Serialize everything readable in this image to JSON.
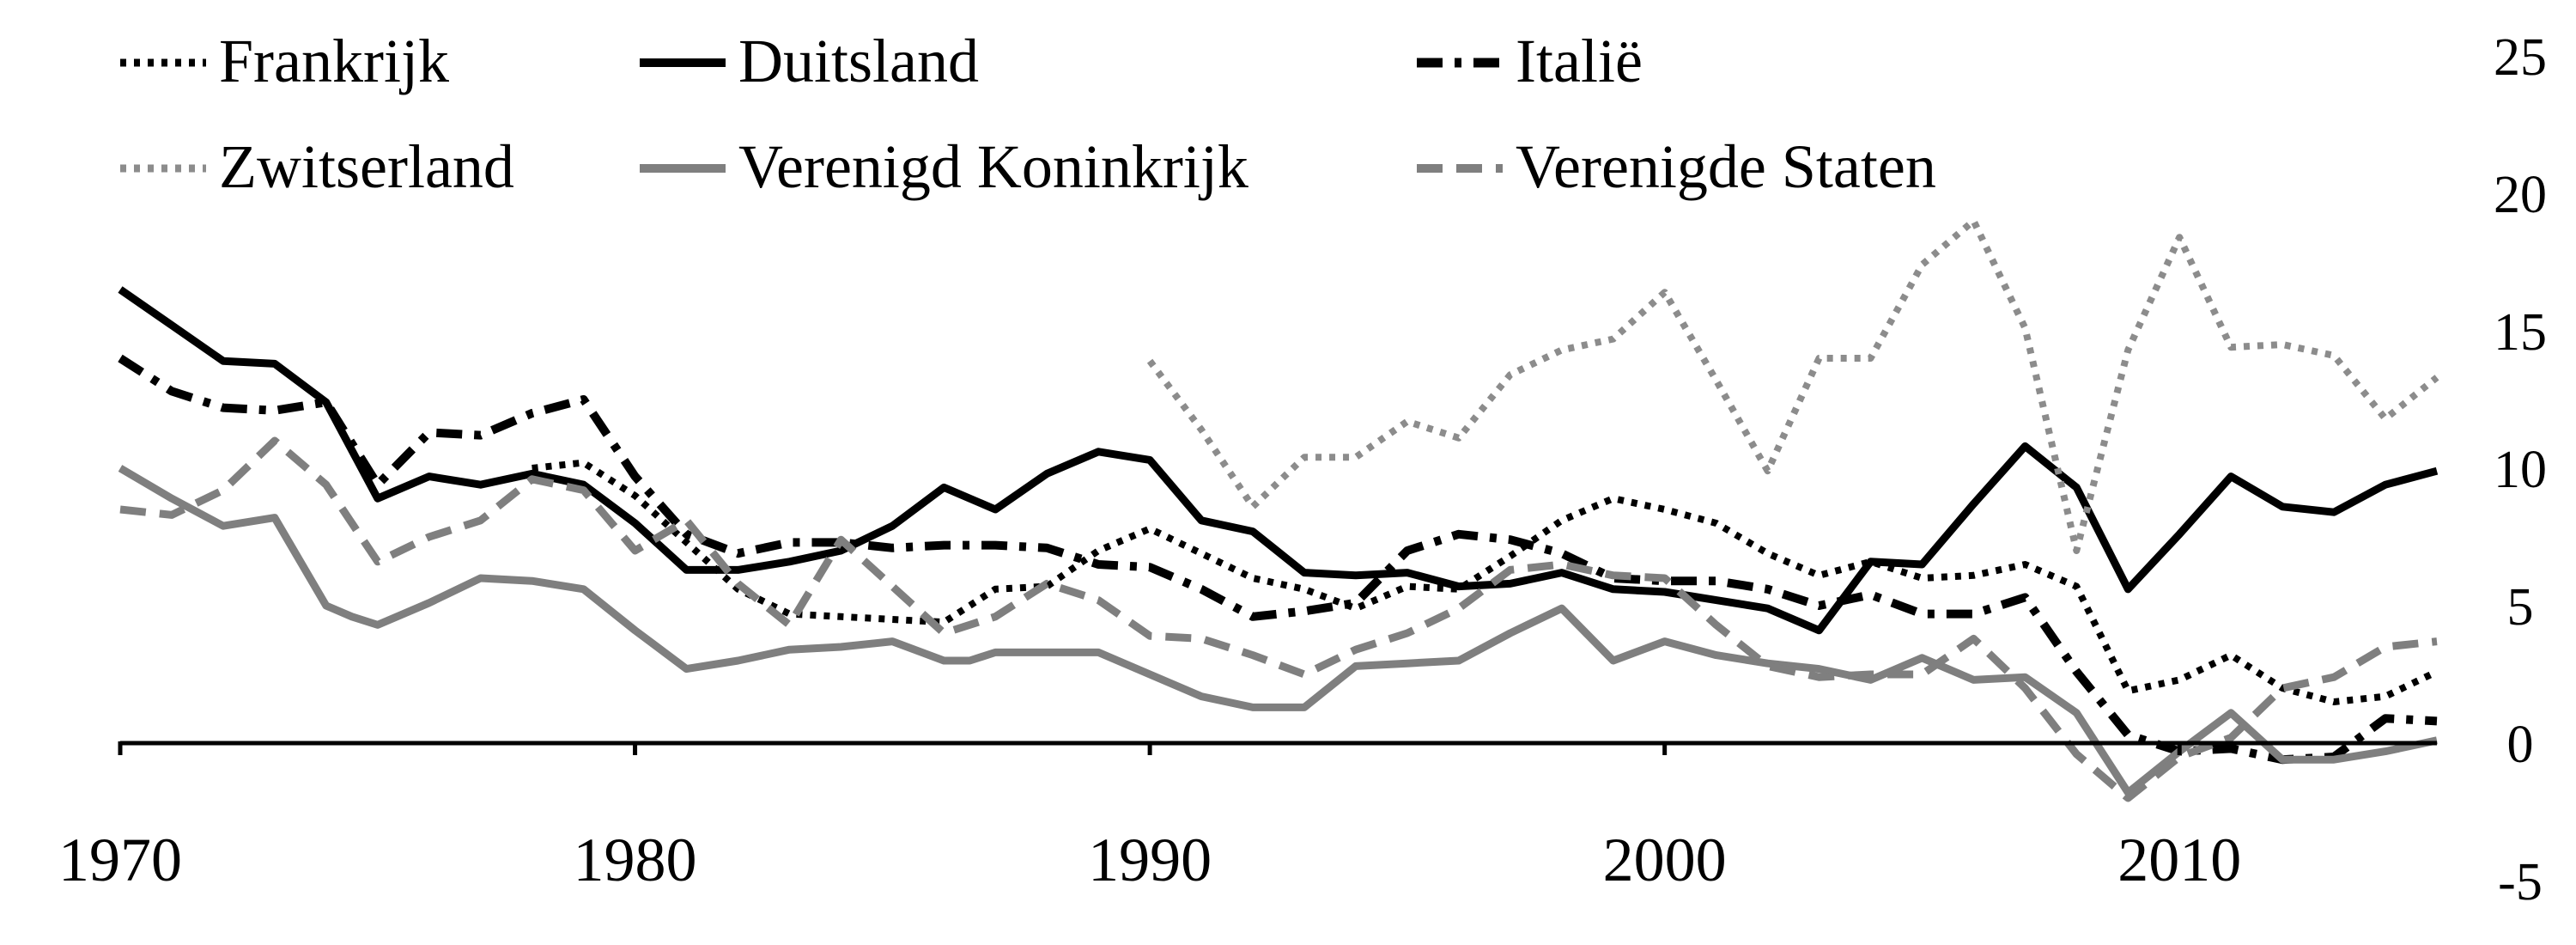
{
  "chart_data": {
    "type": "line",
    "title": "",
    "xlabel": "",
    "ylabel": "",
    "xlim": [
      1970,
      2015
    ],
    "ylim": [
      -5,
      25
    ],
    "y_axis_side": "right",
    "x_ticks": [
      1970,
      1980,
      1990,
      2000,
      2010
    ],
    "x_tick_labels": [
      "1970",
      "1980",
      "1990",
      "2000",
      "2010"
    ],
    "y_ticks": [
      25,
      20,
      15,
      10,
      5,
      0,
      -5
    ],
    "y_tick_labels": [
      "25",
      "20",
      "15",
      "10",
      "5",
      "0",
      "-5"
    ],
    "grid": false,
    "legend_position": "top",
    "series": [
      {
        "name": "Frankrijk",
        "color": "#000000",
        "style": "dotted",
        "x": [
          1978,
          1979,
          1980,
          1981,
          1982,
          1983,
          1984,
          1985,
          1986,
          1987,
          1988,
          1989,
          1990,
          1991,
          1992,
          1993,
          1994,
          1995,
          1996,
          1997,
          1998,
          1999,
          2000,
          2001,
          2002,
          2003,
          2004,
          2005,
          2006,
          2007,
          2008,
          2009,
          2010,
          2011,
          2012,
          2013,
          2014,
          2015
        ],
        "y": [
          10.0,
          10.2,
          9.0,
          7.3,
          5.6,
          4.7,
          4.6,
          4.5,
          4.4,
          5.6,
          5.7,
          7.0,
          7.8,
          6.9,
          6.0,
          5.6,
          4.9,
          5.7,
          5.6,
          6.8,
          8.1,
          8.9,
          8.5,
          8.0,
          6.9,
          6.1,
          6.6,
          6.0,
          6.1,
          6.5,
          5.7,
          1.9,
          2.3,
          3.2,
          2.0,
          1.5,
          1.7,
          2.6
        ]
      },
      {
        "name": "Duitsland",
        "color": "#000000",
        "style": "solid",
        "x": [
          1970,
          1971,
          1972,
          1973,
          1974,
          1975,
          1976,
          1977,
          1978,
          1979,
          1980,
          1981,
          1982,
          1983,
          1984,
          1985,
          1986,
          1987,
          1988,
          1989,
          1990,
          1991,
          1992,
          1993,
          1994,
          1995,
          1996,
          1997,
          1998,
          1999,
          2000,
          2001,
          2002,
          2003,
          2004,
          2005,
          2006,
          2007,
          2008,
          2009,
          2010,
          2011,
          2012,
          2013,
          2014,
          2015
        ],
        "y": [
          16.5,
          15.2,
          13.9,
          13.8,
          12.4,
          8.9,
          9.7,
          9.4,
          9.8,
          9.4,
          8.0,
          6.3,
          6.3,
          6.6,
          7.0,
          7.9,
          9.3,
          8.5,
          9.8,
          10.6,
          10.3,
          8.1,
          7.7,
          6.2,
          6.1,
          6.2,
          5.7,
          5.8,
          6.2,
          5.6,
          5.5,
          5.2,
          4.9,
          4.1,
          6.6,
          6.5,
          8.7,
          10.8,
          9.3,
          5.6,
          7.6,
          9.7,
          8.6,
          8.4,
          9.4,
          9.9
        ]
      },
      {
        "name": "Italië",
        "color": "#000000",
        "style": "dashdot",
        "x": [
          1970,
          1971,
          1972,
          1973,
          1974,
          1975,
          1976,
          1977,
          1978,
          1979,
          1980,
          1981,
          1982,
          1983,
          1984,
          1985,
          1986,
          1987,
          1988,
          1989,
          1990,
          1991,
          1992,
          1993,
          1994,
          1995,
          1996,
          1997,
          1998,
          1999,
          2000,
          2001,
          2002,
          2003,
          2004,
          2005,
          2006,
          2007,
          2008,
          2009,
          2010,
          2011,
          2012,
          2013,
          2014,
          2015
        ],
        "y": [
          14.0,
          12.8,
          12.2,
          12.1,
          12.4,
          9.4,
          11.3,
          11.2,
          12.0,
          12.5,
          9.7,
          7.6,
          6.9,
          7.3,
          7.3,
          7.1,
          7.2,
          7.2,
          7.1,
          6.5,
          6.4,
          5.6,
          4.6,
          4.8,
          5.1,
          7.0,
          7.6,
          7.4,
          6.9,
          6.0,
          5.9,
          5.9,
          5.6,
          5.0,
          5.4,
          4.7,
          4.7,
          5.3,
          2.6,
          0.3,
          -0.3,
          -0.2,
          -0.6,
          -0.5,
          0.9,
          0.8
        ]
      },
      {
        "name": "Zwitserland",
        "color": "#8c8c8c",
        "style": "dotted",
        "x": [
          1990,
          1991,
          1992,
          1993,
          1994,
          1995,
          1996,
          1997,
          1998,
          1999,
          2000,
          2001,
          2002,
          2003,
          2004,
          2005,
          2006,
          2007,
          2008,
          2009,
          2010,
          2011,
          2012,
          2013,
          2014,
          2015
        ],
        "y": [
          13.9,
          11.4,
          8.6,
          10.4,
          10.4,
          11.7,
          11.1,
          13.4,
          14.3,
          14.7,
          16.4,
          13.2,
          9.9,
          14.0,
          14.0,
          17.4,
          19.0,
          15.1,
          7.0,
          14.3,
          18.4,
          14.4,
          14.5,
          14.1,
          11.8,
          13.3
        ]
      },
      {
        "name": "Verenigd Koninkrijk",
        "color": "#7f7f7f",
        "style": "solid",
        "x": [
          1970,
          1971,
          1972,
          1973,
          1974,
          1974.5,
          1975,
          1976,
          1977,
          1978,
          1979,
          1980,
          1981,
          1982,
          1983,
          1984,
          1985,
          1986,
          1986.5,
          1987,
          1988,
          1989,
          1990,
          1991,
          1992,
          1993,
          1994,
          1995,
          1996,
          1997,
          1998,
          1999,
          2000,
          2001,
          2002,
          2003,
          2004,
          2005,
          2006,
          2007,
          2008,
          2009,
          2010,
          2011,
          2012,
          2013,
          2014,
          2015
        ],
        "y": [
          10.0,
          8.9,
          7.9,
          8.2,
          5.0,
          4.6,
          4.3,
          5.1,
          6.0,
          5.9,
          5.6,
          4.1,
          2.7,
          3.0,
          3.4,
          3.5,
          3.7,
          3.0,
          3.0,
          3.3,
          3.3,
          3.3,
          2.5,
          1.7,
          1.3,
          1.3,
          2.8,
          2.9,
          3.0,
          4.0,
          4.9,
          3.0,
          3.7,
          3.2,
          2.9,
          2.7,
          2.3,
          3.1,
          2.3,
          2.4,
          1.1,
          -1.8,
          -0.3,
          1.1,
          -0.6,
          -0.6,
          -0.3,
          0.1
        ]
      },
      {
        "name": "Verenigde Staten",
        "color": "#7f7f7f",
        "style": "dashed",
        "x": [
          1970,
          1971,
          1972,
          1973,
          1974,
          1975,
          1976,
          1977,
          1978,
          1979,
          1980,
          1981,
          1982,
          1983,
          1984,
          1985,
          1986,
          1987,
          1988,
          1989,
          1990,
          1991,
          1992,
          1993,
          1994,
          1995,
          1996,
          1997,
          1998,
          1999,
          2000,
          2001,
          2002,
          2003,
          2004,
          2005,
          2006,
          2007,
          2008,
          2009,
          2010,
          2011,
          2012,
          2013,
          2014,
          2015
        ],
        "y": [
          8.5,
          8.3,
          9.2,
          11.0,
          9.4,
          6.6,
          7.5,
          8.1,
          9.6,
          9.2,
          7.0,
          8.1,
          5.8,
          4.3,
          7.4,
          5.7,
          4.0,
          4.6,
          5.8,
          5.2,
          3.9,
          3.8,
          3.2,
          2.5,
          3.4,
          4.0,
          4.9,
          6.3,
          6.5,
          6.1,
          6.0,
          4.3,
          2.8,
          2.4,
          2.5,
          2.5,
          3.8,
          2.0,
          -0.4,
          -2.0,
          -0.5,
          0.2,
          2.0,
          2.4,
          3.5,
          3.7
        ]
      }
    ]
  }
}
